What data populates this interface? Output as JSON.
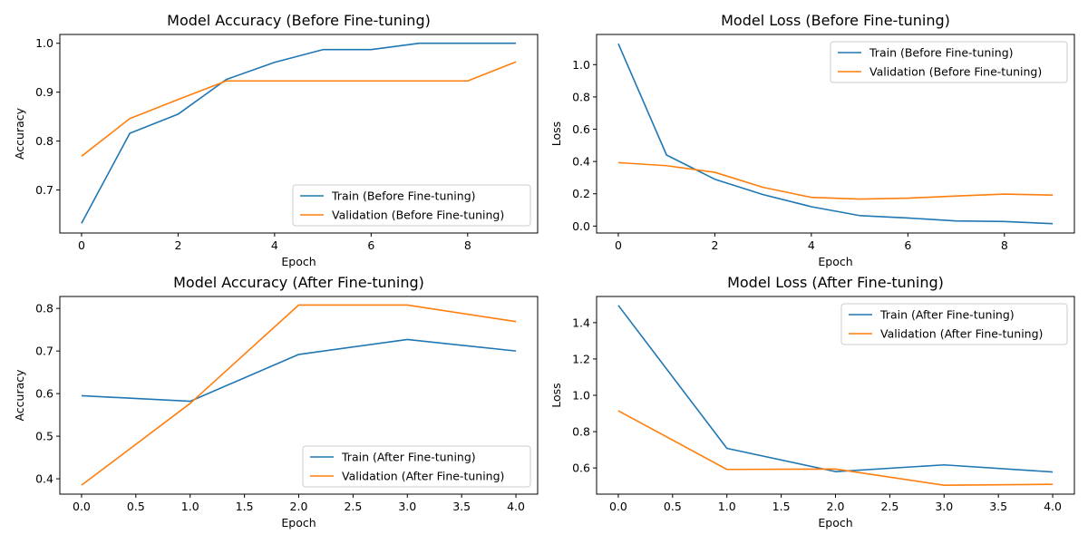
{
  "chart_data": [
    {
      "type": "line",
      "title": "Model Accuracy (Before Fine-tuning)",
      "xlabel": "Epoch",
      "ylabel": "Accuracy",
      "xlim": [
        -0.45,
        9.45
      ],
      "ylim": [
        0.612,
        1.018
      ],
      "xticks": [
        0,
        2,
        4,
        6,
        8
      ],
      "xtick_labels": [
        "0",
        "2",
        "4",
        "6",
        "8"
      ],
      "yticks": [
        0.7,
        0.8,
        0.9,
        1.0
      ],
      "ytick_labels": [
        "0.7",
        "0.8",
        "0.9",
        "1.0"
      ],
      "legend_position": "lower-right",
      "grid": false,
      "series": [
        {
          "name": "Train (Before Fine-tuning)",
          "color": "#1f77b4",
          "x": [
            0,
            1,
            2,
            3,
            4,
            5,
            6,
            7,
            8,
            9
          ],
          "y": [
            0.632,
            0.816,
            0.855,
            0.926,
            0.961,
            0.987,
            0.987,
            1.0,
            1.0,
            1.0
          ]
        },
        {
          "name": "Validation (Before Fine-tuning)",
          "color": "#ff7f0e",
          "x": [
            0,
            1,
            2,
            3,
            4,
            5,
            6,
            7,
            8,
            9
          ],
          "y": [
            0.769,
            0.846,
            0.885,
            0.923,
            0.923,
            0.923,
            0.923,
            0.923,
            0.923,
            0.962
          ]
        }
      ]
    },
    {
      "type": "line",
      "title": "Model Loss (Before Fine-tuning)",
      "xlabel": "Epoch",
      "ylabel": "Loss",
      "xlim": [
        -0.45,
        9.45
      ],
      "ylim": [
        -0.043,
        1.187
      ],
      "xticks": [
        0,
        2,
        4,
        6,
        8
      ],
      "xtick_labels": [
        "0",
        "2",
        "4",
        "6",
        "8"
      ],
      "yticks": [
        0.0,
        0.2,
        0.4,
        0.6,
        0.8,
        1.0
      ],
      "ytick_labels": [
        "0.0",
        "0.2",
        "0.4",
        "0.6",
        "0.8",
        "1.0"
      ],
      "legend_position": "upper-right",
      "grid": false,
      "series": [
        {
          "name": "Train (Before Fine-tuning)",
          "color": "#1f77b4",
          "x": [
            0,
            1,
            2,
            3,
            4,
            5,
            6,
            7,
            8,
            9
          ],
          "y": [
            1.13,
            0.44,
            0.29,
            0.195,
            0.12,
            0.065,
            0.05,
            0.032,
            0.028,
            0.015
          ]
        },
        {
          "name": "Validation (Before Fine-tuning)",
          "color": "#ff7f0e",
          "x": [
            0,
            1,
            2,
            3,
            4,
            5,
            6,
            7,
            8,
            9
          ],
          "y": [
            0.393,
            0.374,
            0.333,
            0.24,
            0.178,
            0.167,
            0.173,
            0.186,
            0.198,
            0.192
          ]
        }
      ]
    },
    {
      "type": "line",
      "title": "Model Accuracy (After Fine-tuning)",
      "xlabel": "Epoch",
      "ylabel": "Accuracy",
      "xlim": [
        -0.2,
        4.2
      ],
      "ylim": [
        0.364,
        0.828
      ],
      "xticks": [
        0,
        0.5,
        1,
        1.5,
        2,
        2.5,
        3,
        3.5,
        4
      ],
      "xtick_labels": [
        "0.0",
        "0.5",
        "1.0",
        "1.5",
        "2.0",
        "2.5",
        "3.0",
        "3.5",
        "4.0"
      ],
      "yticks": [
        0.4,
        0.5,
        0.6,
        0.7,
        0.8
      ],
      "ytick_labels": [
        "0.4",
        "0.5",
        "0.6",
        "0.7",
        "0.8"
      ],
      "legend_position": "lower-right",
      "grid": false,
      "series": [
        {
          "name": "Train (After Fine-tuning)",
          "color": "#1f77b4",
          "x": [
            0,
            1,
            2,
            3,
            4
          ],
          "y": [
            0.595,
            0.582,
            0.692,
            0.727,
            0.7
          ]
        },
        {
          "name": "Validation (After Fine-tuning)",
          "color": "#ff7f0e",
          "x": [
            0,
            1,
            2,
            3,
            4
          ],
          "y": [
            0.385,
            0.577,
            0.808,
            0.808,
            0.769
          ]
        }
      ]
    },
    {
      "type": "line",
      "title": "Model Loss (After Fine-tuning)",
      "xlabel": "Epoch",
      "ylabel": "Loss",
      "xlim": [
        -0.2,
        4.2
      ],
      "ylim": [
        0.456,
        1.544
      ],
      "xticks": [
        0,
        0.5,
        1,
        1.5,
        2,
        2.5,
        3,
        3.5,
        4
      ],
      "xtick_labels": [
        "0.0",
        "0.5",
        "1.0",
        "1.5",
        "2.0",
        "2.5",
        "3.0",
        "3.5",
        "4.0"
      ],
      "yticks": [
        0.6,
        0.8,
        1.0,
        1.2,
        1.4
      ],
      "ytick_labels": [
        "0.6",
        "0.8",
        "1.0",
        "1.2",
        "1.4"
      ],
      "legend_position": "upper-right",
      "grid": false,
      "series": [
        {
          "name": "Train (After Fine-tuning)",
          "color": "#1f77b4",
          "x": [
            0,
            1,
            2,
            3,
            4
          ],
          "y": [
            1.495,
            0.708,
            0.58,
            0.617,
            0.578
          ]
        },
        {
          "name": "Validation (After Fine-tuning)",
          "color": "#ff7f0e",
          "x": [
            0,
            1,
            2,
            3,
            4
          ],
          "y": [
            0.915,
            0.592,
            0.594,
            0.505,
            0.51
          ]
        }
      ]
    }
  ]
}
